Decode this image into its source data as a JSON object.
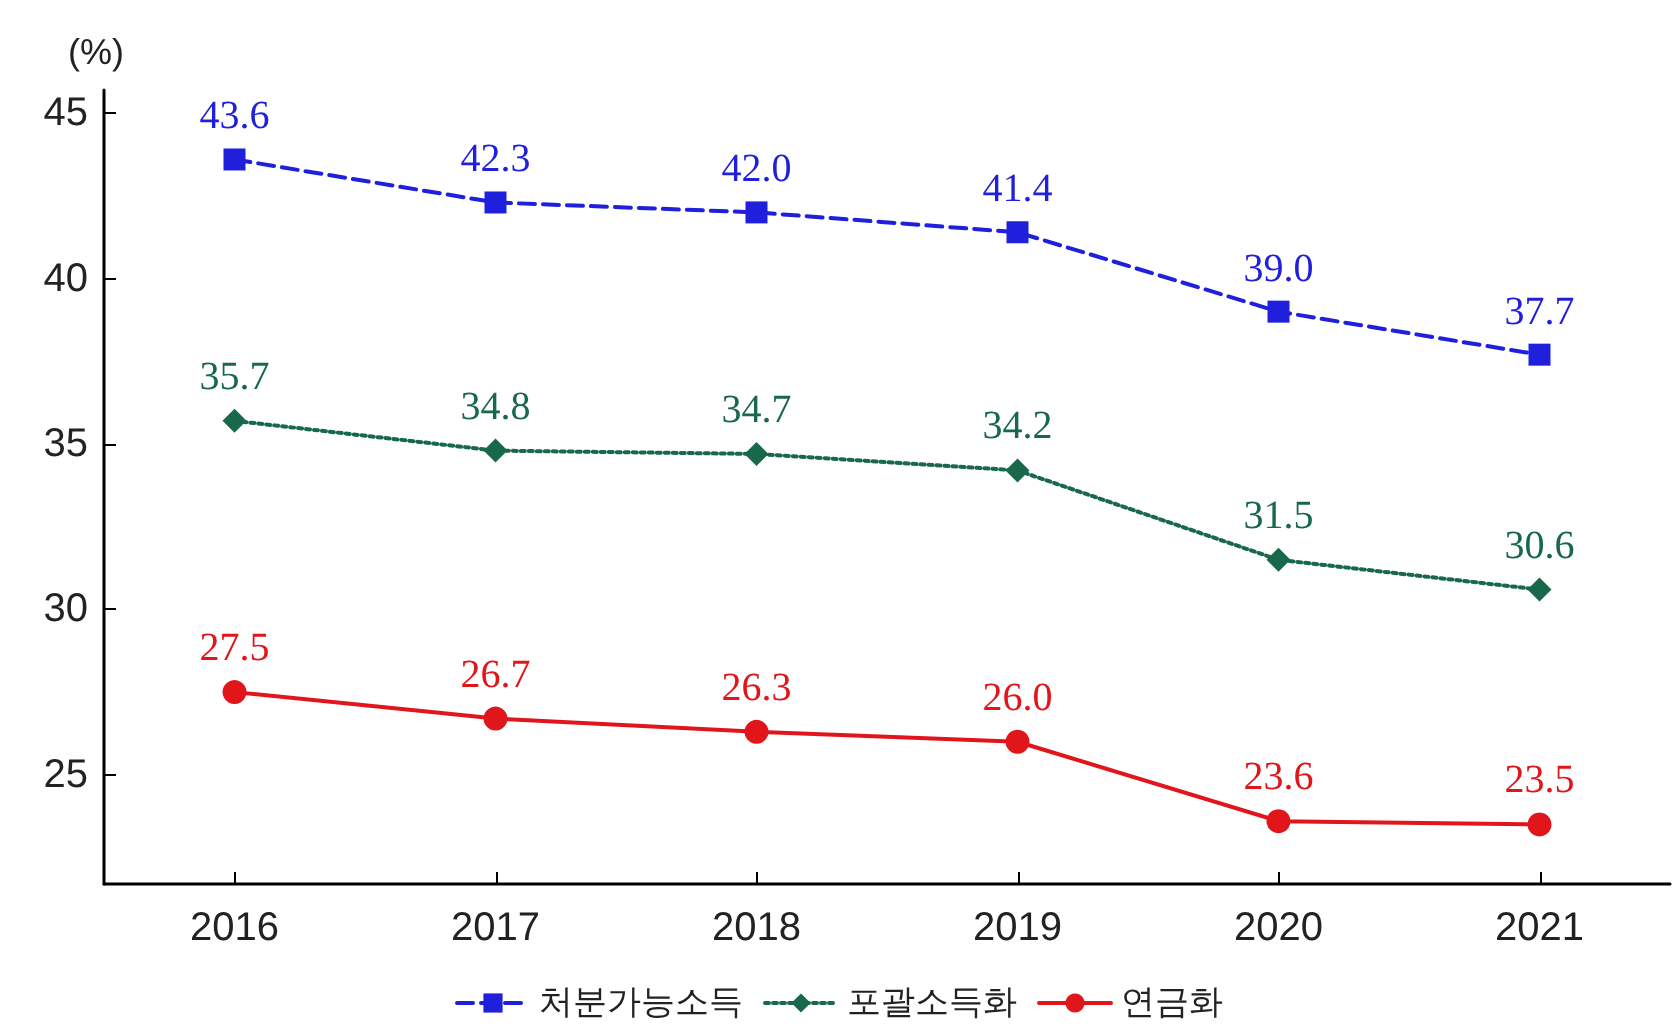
{
  "chart_data": {
    "type": "line",
    "ylabel": "(%)",
    "categories": [
      "2016",
      "2017",
      "2018",
      "2019",
      "2020",
      "2021"
    ],
    "ylim": [
      21.7,
      45.7
    ],
    "yticks": [
      25,
      30,
      35,
      40,
      45
    ],
    "grid": false,
    "legend": "bottom",
    "series": [
      {
        "name": "처분가능소득",
        "color": "#1f1fdc",
        "marker": "square",
        "line_style": "dashed",
        "values": [
          43.6,
          42.3,
          42.0,
          41.4,
          39.0,
          37.7
        ],
        "value_labels": [
          "43.6",
          "42.3",
          "42.0",
          "41.4",
          "39.0",
          "37.7"
        ]
      },
      {
        "name": "포괄소득화",
        "color": "#17694a",
        "marker": "diamond",
        "line_style": "dotted",
        "values": [
          35.7,
          34.8,
          34.7,
          34.2,
          31.5,
          30.6
        ],
        "value_labels": [
          "35.7",
          "34.8",
          "34.7",
          "34.2",
          "31.5",
          "30.6"
        ]
      },
      {
        "name": "연금화",
        "color": "#e0161b",
        "marker": "circle",
        "line_style": "solid",
        "values": [
          27.5,
          26.7,
          26.3,
          26.0,
          23.6,
          23.5
        ],
        "value_labels": [
          "27.5",
          "26.7",
          "26.3",
          "26.0",
          "23.6",
          "23.5"
        ]
      }
    ]
  }
}
